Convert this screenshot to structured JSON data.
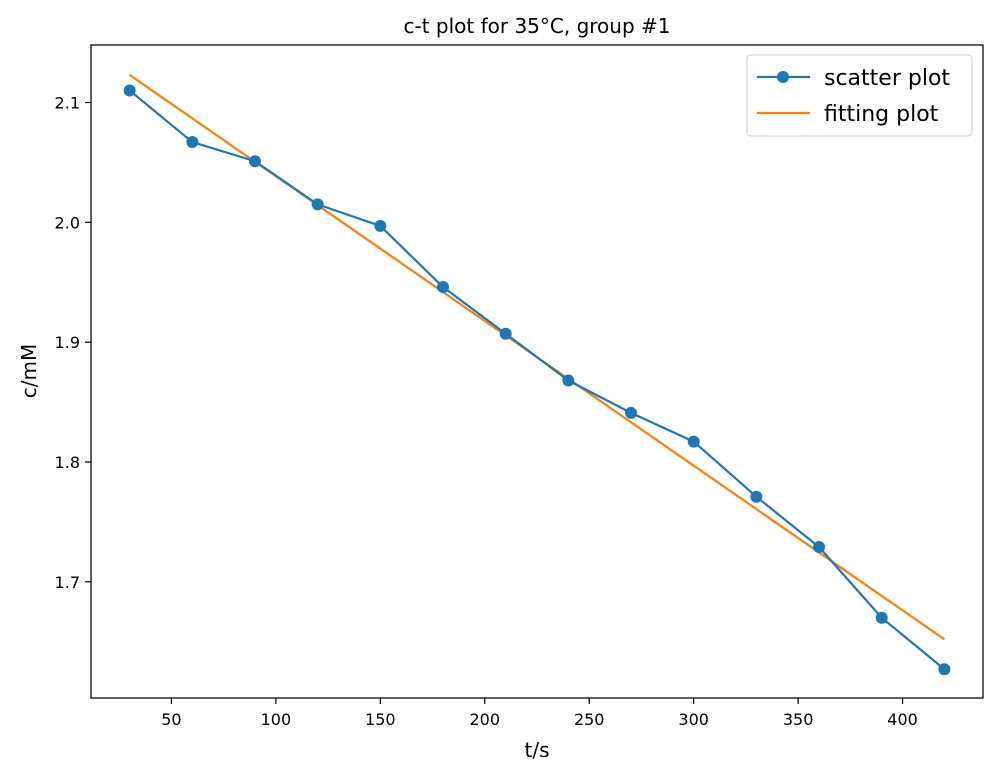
{
  "chart_data": {
    "type": "line",
    "title": "c-t plot for 35°C, group #1",
    "xlabel": "t/s",
    "ylabel": "c/mM",
    "xlim": [
      11.5,
      438.5
    ],
    "ylim": [
      1.603,
      2.148
    ],
    "xticks": [
      50,
      100,
      150,
      200,
      250,
      300,
      350,
      400
    ],
    "yticks": [
      1.7,
      1.8,
      1.9,
      2.0,
      2.1
    ],
    "grid": false,
    "legend": "top-right",
    "series": [
      {
        "name": "scatter plot",
        "color": "#1f77b4",
        "marker": "circle",
        "x": [
          30,
          60,
          90,
          120,
          150,
          180,
          210,
          240,
          270,
          300,
          330,
          360,
          390,
          420
        ],
        "y": [
          2.11,
          2.067,
          2.051,
          2.015,
          1.997,
          1.946,
          1.907,
          1.868,
          1.841,
          1.817,
          1.771,
          1.729,
          1.67,
          1.627
        ]
      },
      {
        "name": "fitting plot",
        "color": "#ff7f0e",
        "marker": "none",
        "x": [
          30,
          420
        ],
        "y": [
          2.123,
          1.652
        ]
      }
    ]
  }
}
